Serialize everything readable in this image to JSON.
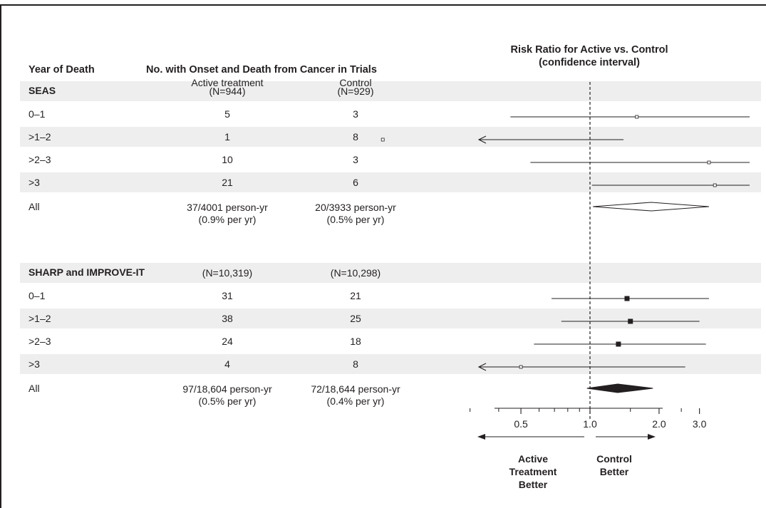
{
  "header": {
    "year_col": "Year of Death",
    "count_col": "No. with Onset and Death from Cancer in Trials",
    "active_sub": "Active treatment",
    "control_sub": "Control",
    "plot_title_1": "Risk Ratio for Active vs. Control",
    "plot_title_2": "(confidence interval)"
  },
  "groups": [
    {
      "name": "SEAS",
      "active_n": "(N=944)",
      "control_n": "(N=929)",
      "rows": [
        {
          "label": "0–1",
          "active": "5",
          "control": "3"
        },
        {
          "label": ">1–2",
          "active": "1",
          "control": "8"
        },
        {
          "label": ">2–3",
          "active": "10",
          "control": "3"
        },
        {
          "label": ">3",
          "active": "21",
          "control": "6"
        }
      ],
      "all": {
        "label": "All",
        "active_1": "37/4001 person-yr",
        "active_2": "(0.9% per yr)",
        "control_1": "20/3933 person-yr",
        "control_2": "(0.5% per yr)"
      }
    },
    {
      "name": "SHARP and IMPROVE-IT",
      "active_n": "(N=10,319)",
      "control_n": "(N=10,298)",
      "rows": [
        {
          "label": "0–1",
          "active": "31",
          "control": "21"
        },
        {
          "label": ">1–2",
          "active": "38",
          "control": "25"
        },
        {
          "label": ">2–3",
          "active": "24",
          "control": "18"
        },
        {
          "label": ">3",
          "active": "4",
          "control": "8"
        }
      ],
      "all": {
        "label": "All",
        "active_1": "97/18,604 person-yr",
        "active_2": "(0.5% per yr)",
        "control_1": "72/18,644 person-yr",
        "control_2": "(0.4% per yr)"
      }
    }
  ],
  "axis": {
    "tick_labels": [
      "0.5",
      "1.0",
      "2.0",
      "3.0"
    ],
    "left_label": [
      "Active",
      "Treatment",
      "Better"
    ],
    "right_label": [
      "Control",
      "Better"
    ]
  },
  "chart_data": {
    "type": "forest",
    "title": "Risk Ratio for Active vs. Control (confidence interval)",
    "x_scale": "log",
    "xlim": [
      0.15,
      3.5
    ],
    "reference_line": 1.0,
    "x_ticks_major": [
      0.5,
      1.0,
      2.0,
      3.0
    ],
    "x_ticks_minor": [
      0.3,
      0.4,
      0.6,
      0.7,
      0.8,
      0.9,
      1.5,
      2.5
    ],
    "series": [
      {
        "name": "SEAS",
        "estimates": [
          {
            "label": "0–1",
            "rr": 1.6,
            "lower": 0.45,
            "upper": 5.8,
            "weight": "small"
          },
          {
            "label": ">1–2",
            "rr": 0.125,
            "lower": 0.02,
            "upper": 1.4,
            "arrow_left": true,
            "weight": "small"
          },
          {
            "label": ">2–3",
            "rr": 3.3,
            "lower": 0.55,
            "upper": 7.0,
            "weight": "small"
          },
          {
            "label": ">3",
            "rr": 3.5,
            "lower": 1.02,
            "upper": 6.0,
            "weight": "small"
          }
        ],
        "pooled": {
          "label": "All",
          "rr": 1.85,
          "lower": 1.03,
          "upper": 3.3
        }
      },
      {
        "name": "SHARP and IMPROVE-IT",
        "estimates": [
          {
            "label": "0–1",
            "rr": 1.45,
            "lower": 0.68,
            "upper": 3.3,
            "weight": "large"
          },
          {
            "label": ">1–2",
            "rr": 1.5,
            "lower": 0.75,
            "upper": 3.0,
            "weight": "large"
          },
          {
            "label": ">2–3",
            "rr": 1.33,
            "lower": 0.57,
            "upper": 3.2,
            "weight": "large"
          },
          {
            "label": ">3",
            "rr": 0.5,
            "lower": 0.05,
            "upper": 2.6,
            "arrow_left": true,
            "weight": "small"
          }
        ],
        "pooled": {
          "label": "All",
          "rr": 1.32,
          "lower": 0.97,
          "upper": 1.88
        }
      }
    ]
  }
}
